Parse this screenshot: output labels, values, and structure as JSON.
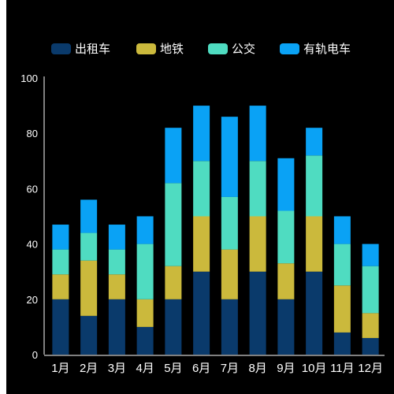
{
  "chart_data": {
    "type": "bar",
    "stacked": true,
    "categories": [
      "1月",
      "2月",
      "3月",
      "4月",
      "5月",
      "6月",
      "7月",
      "8月",
      "9月",
      "10月",
      "11月",
      "12月"
    ],
    "series": [
      {
        "name": "出租车",
        "color": "#0a3a6b",
        "values": [
          20,
          14,
          20,
          10,
          20,
          30,
          20,
          30,
          20,
          30,
          8,
          6
        ]
      },
      {
        "name": "地铁",
        "color": "#cbb93c",
        "values": [
          9,
          20,
          9,
          10,
          12,
          20,
          18,
          20,
          13,
          20,
          17,
          9
        ]
      },
      {
        "name": "公交",
        "color": "#4fdcc1",
        "values": [
          9,
          10,
          9,
          20,
          30,
          20,
          19,
          20,
          19,
          22,
          15,
          17
        ]
      },
      {
        "name": "有轨电车",
        "color": "#0aa2f5",
        "values": [
          9,
          12,
          9,
          10,
          20,
          20,
          29,
          20,
          19,
          10,
          10,
          8
        ]
      }
    ],
    "ylim": [
      0,
      100
    ],
    "yticks": [
      0,
      20,
      40,
      60,
      80,
      100
    ],
    "legend_position": "top",
    "grid": false,
    "background": "#000000"
  }
}
